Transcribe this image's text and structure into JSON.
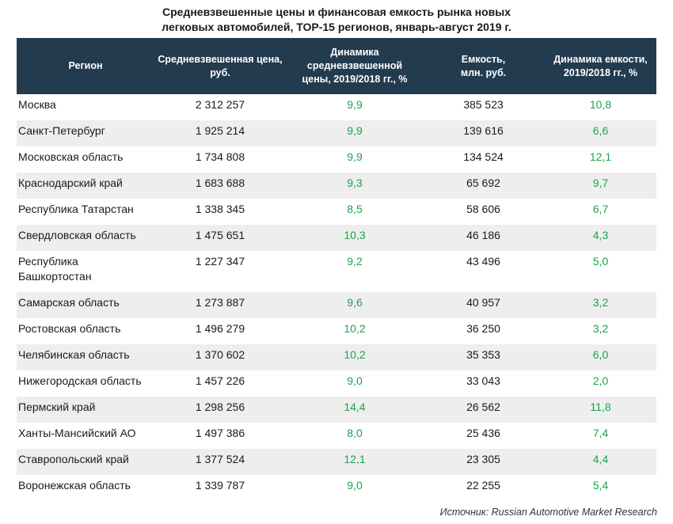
{
  "title_line1": "Средневзвешенные цены и финансовая емкость рынка новых",
  "title_line2": "легковых автомобилей, ТОР-15 регионов, январь-август 2019 г.",
  "header": {
    "region": "Регион",
    "price_line1": "Средневзвешенная цена,",
    "price_line2": "руб.",
    "dprice_line1": "Динамика",
    "dprice_line2": "средневзвешенной",
    "dprice_line3": "цены, 2019/2018 гг., %",
    "cap_line1": "Емкость,",
    "cap_line2": "млн. руб.",
    "dcap_line1": "Динамика емкости,",
    "dcap_line2": "2019/2018 гг., %"
  },
  "rows": [
    {
      "region": "Москва",
      "price": "2 312 257",
      "dprice": "9,9",
      "capacity": "385 523",
      "dcap": "10,8"
    },
    {
      "region": "Санкт-Петербург",
      "price": "1 925 214",
      "dprice": "9,9",
      "capacity": "139 616",
      "dcap": "6,6"
    },
    {
      "region": "Московская область",
      "price": "1 734 808",
      "dprice": "9,9",
      "capacity": "134 524",
      "dcap": "12,1"
    },
    {
      "region": "Краснодарский край",
      "price": "1 683 688",
      "dprice": "9,3",
      "capacity": "65 692",
      "dcap": "9,7"
    },
    {
      "region": "Республика Татарстан",
      "price": "1 338 345",
      "dprice": "8,5",
      "capacity": "58 606",
      "dcap": "6,7"
    },
    {
      "region": "Свердловская область",
      "price": "1 475 651",
      "dprice": "10,3",
      "capacity": "46 186",
      "dcap": "4,3"
    },
    {
      "region": "Республика Башкортостан",
      "price": "1 227 347",
      "dprice": "9,2",
      "capacity": "43 496",
      "dcap": "5,0"
    },
    {
      "region": "Самарская область",
      "price": "1 273 887",
      "dprice": "9,6",
      "capacity": "40 957",
      "dcap": "3,2"
    },
    {
      "region": "Ростовская область",
      "price": "1 496 279",
      "dprice": "10,2",
      "capacity": "36 250",
      "dcap": "3,2"
    },
    {
      "region": "Челябинская область",
      "price": "1 370 602",
      "dprice": "10,2",
      "capacity": "35 353",
      "dcap": "6,0"
    },
    {
      "region": "Нижегородская область",
      "price": "1 457 226",
      "dprice": "9,0",
      "capacity": "33 043",
      "dcap": "2,0"
    },
    {
      "region": "Пермский край",
      "price": "1 298 256",
      "dprice": "14,4",
      "capacity": "26 562",
      "dcap": "11,8"
    },
    {
      "region": "Ханты-Мансийский АО",
      "price": "1 497 386",
      "dprice": "8,0",
      "capacity": "25 436",
      "dcap": "7,4"
    },
    {
      "region": "Ставропольский край",
      "price": "1 377 524",
      "dprice": "12,1",
      "capacity": "23 305",
      "dcap": "4,4"
    },
    {
      "region": "Воронежская область",
      "price": "1 339 787",
      "dprice": "9,0",
      "capacity": "22 255",
      "dcap": "5,4"
    }
  ],
  "source": "Источник: Russian Automotive Market Research",
  "colors": {
    "header_bg": "#233b4f",
    "positive_green": "#1aa34a",
    "stripe": "#eeeeee"
  }
}
